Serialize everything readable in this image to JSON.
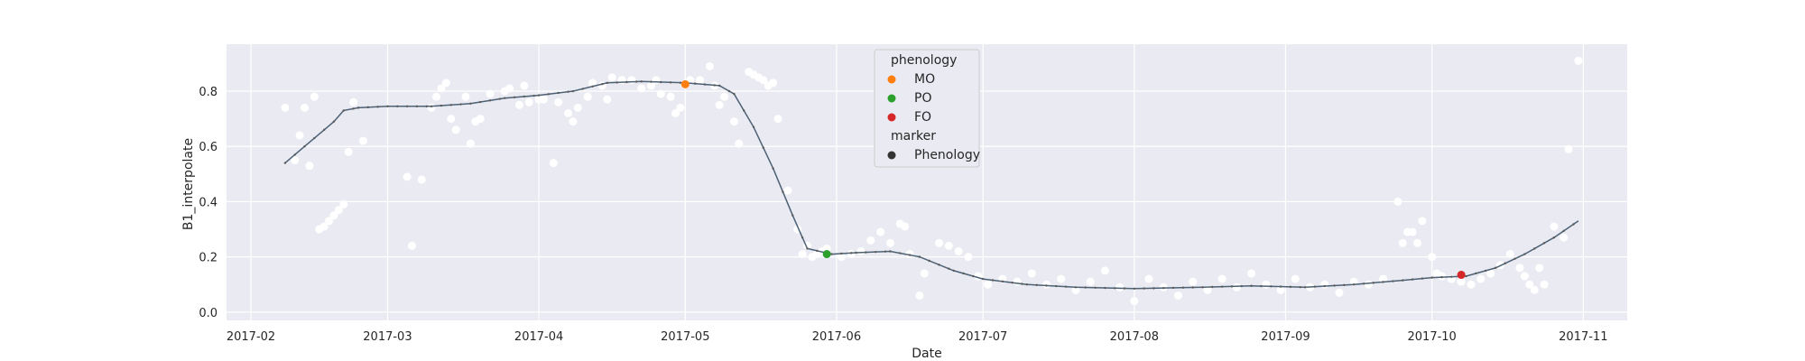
{
  "chart_data": {
    "type": "scatter",
    "xlabel": "Date",
    "ylabel": "B1_interpolate",
    "xlim": [
      "2017-01-27",
      "2017-11-10"
    ],
    "ylim": [
      -0.03,
      0.97
    ],
    "x_ticks": [
      "2017-02-01",
      "2017-03-01",
      "2017-04-01",
      "2017-05-01",
      "2017-06-01",
      "2017-07-01",
      "2017-08-01",
      "2017-09-01",
      "2017-10-01",
      "2017-11-01"
    ],
    "x_tick_labels": [
      "2017-02",
      "2017-03",
      "2017-04",
      "2017-05",
      "2017-06",
      "2017-07",
      "2017-08",
      "2017-09",
      "2017-10",
      "2017-11"
    ],
    "y_ticks": [
      0.0,
      0.2,
      0.4,
      0.6,
      0.8
    ],
    "y_tick_labels": [
      "0.0",
      "0.2",
      "0.4",
      "0.6",
      "0.8"
    ],
    "grid": true,
    "legend_position": "top-center",
    "legend": {
      "hue_title": "phenology",
      "hue_entries": [
        {
          "label": "MO",
          "color": "#ff7f0e"
        },
        {
          "label": "PO",
          "color": "#2ca02c"
        },
        {
          "label": "FO",
          "color": "#d62728"
        }
      ],
      "marker_title": "marker",
      "marker_entries": [
        {
          "label": "Phenology",
          "color": "#333333"
        }
      ]
    },
    "colors": {
      "background": "#eaeaf2",
      "grid": "#ffffff",
      "raw_points": "#ffffff",
      "curve": "#4c6174",
      "curve_markers": "#595959"
    },
    "series": [
      {
        "kind": "raw_observations",
        "points": [
          [
            "2017-02-08",
            0.74
          ],
          [
            "2017-02-10",
            0.55
          ],
          [
            "2017-02-11",
            0.64
          ],
          [
            "2017-02-12",
            0.74
          ],
          [
            "2017-02-13",
            0.53
          ],
          [
            "2017-02-14",
            0.78
          ],
          [
            "2017-02-15",
            0.3
          ],
          [
            "2017-02-16",
            0.31
          ],
          [
            "2017-02-17",
            0.33
          ],
          [
            "2017-02-18",
            0.35
          ],
          [
            "2017-02-19",
            0.37
          ],
          [
            "2017-02-20",
            0.39
          ],
          [
            "2017-02-21",
            0.58
          ],
          [
            "2017-02-22",
            0.76
          ],
          [
            "2017-02-24",
            0.62
          ],
          [
            "2017-03-05",
            0.49
          ],
          [
            "2017-03-06",
            0.24
          ],
          [
            "2017-03-08",
            0.48
          ],
          [
            "2017-03-10",
            0.74
          ],
          [
            "2017-03-11",
            0.78
          ],
          [
            "2017-03-12",
            0.81
          ],
          [
            "2017-03-13",
            0.83
          ],
          [
            "2017-03-14",
            0.7
          ],
          [
            "2017-03-15",
            0.66
          ],
          [
            "2017-03-17",
            0.78
          ],
          [
            "2017-03-18",
            0.61
          ],
          [
            "2017-03-19",
            0.69
          ],
          [
            "2017-03-20",
            0.7
          ],
          [
            "2017-03-22",
            0.79
          ],
          [
            "2017-03-25",
            0.8
          ],
          [
            "2017-03-26",
            0.81
          ],
          [
            "2017-03-28",
            0.75
          ],
          [
            "2017-03-29",
            0.82
          ],
          [
            "2017-03-30",
            0.76
          ],
          [
            "2017-04-01",
            0.77
          ],
          [
            "2017-04-02",
            0.77
          ],
          [
            "2017-04-04",
            0.54
          ],
          [
            "2017-04-05",
            0.76
          ],
          [
            "2017-04-07",
            0.72
          ],
          [
            "2017-04-08",
            0.69
          ],
          [
            "2017-04-09",
            0.74
          ],
          [
            "2017-04-11",
            0.78
          ],
          [
            "2017-04-12",
            0.83
          ],
          [
            "2017-04-14",
            0.82
          ],
          [
            "2017-04-15",
            0.77
          ],
          [
            "2017-04-16",
            0.85
          ],
          [
            "2017-04-18",
            0.84
          ],
          [
            "2017-04-20",
            0.84
          ],
          [
            "2017-04-22",
            0.81
          ],
          [
            "2017-04-24",
            0.82
          ],
          [
            "2017-04-25",
            0.84
          ],
          [
            "2017-04-26",
            0.79
          ],
          [
            "2017-04-28",
            0.78
          ],
          [
            "2017-04-29",
            0.72
          ],
          [
            "2017-04-30",
            0.74
          ],
          [
            "2017-05-02",
            0.84
          ],
          [
            "2017-05-04",
            0.84
          ],
          [
            "2017-05-06",
            0.89
          ],
          [
            "2017-05-07",
            0.82
          ],
          [
            "2017-05-08",
            0.75
          ],
          [
            "2017-05-09",
            0.78
          ],
          [
            "2017-05-11",
            0.69
          ],
          [
            "2017-05-12",
            0.61
          ],
          [
            "2017-05-14",
            0.87
          ],
          [
            "2017-05-15",
            0.86
          ],
          [
            "2017-05-16",
            0.85
          ],
          [
            "2017-05-17",
            0.84
          ],
          [
            "2017-05-18",
            0.82
          ],
          [
            "2017-05-19",
            0.83
          ],
          [
            "2017-05-20",
            0.7
          ],
          [
            "2017-05-22",
            0.44
          ],
          [
            "2017-05-24",
            0.3
          ],
          [
            "2017-05-25",
            0.21
          ],
          [
            "2017-05-26",
            0.24
          ],
          [
            "2017-05-27",
            0.2
          ],
          [
            "2017-05-28",
            0.21
          ],
          [
            "2017-05-29",
            0.22
          ],
          [
            "2017-05-30",
            0.23
          ],
          [
            "2017-06-02",
            0.2
          ],
          [
            "2017-06-04",
            0.21
          ],
          [
            "2017-06-06",
            0.22
          ],
          [
            "2017-06-08",
            0.26
          ],
          [
            "2017-06-10",
            0.29
          ],
          [
            "2017-06-12",
            0.25
          ],
          [
            "2017-06-14",
            0.32
          ],
          [
            "2017-06-15",
            0.31
          ],
          [
            "2017-06-16",
            0.21
          ],
          [
            "2017-06-18",
            0.06
          ],
          [
            "2017-06-19",
            0.14
          ],
          [
            "2017-06-22",
            0.25
          ],
          [
            "2017-06-24",
            0.24
          ],
          [
            "2017-06-26",
            0.22
          ],
          [
            "2017-06-28",
            0.2
          ],
          [
            "2017-06-30",
            0.13
          ],
          [
            "2017-07-02",
            0.1
          ],
          [
            "2017-07-05",
            0.12
          ],
          [
            "2017-07-08",
            0.11
          ],
          [
            "2017-07-11",
            0.14
          ],
          [
            "2017-07-14",
            0.1
          ],
          [
            "2017-07-17",
            0.12
          ],
          [
            "2017-07-20",
            0.08
          ],
          [
            "2017-07-23",
            0.11
          ],
          [
            "2017-07-26",
            0.15
          ],
          [
            "2017-07-29",
            0.09
          ],
          [
            "2017-08-01",
            0.04
          ],
          [
            "2017-08-04",
            0.12
          ],
          [
            "2017-08-07",
            0.09
          ],
          [
            "2017-08-10",
            0.06
          ],
          [
            "2017-08-13",
            0.11
          ],
          [
            "2017-08-16",
            0.08
          ],
          [
            "2017-08-19",
            0.12
          ],
          [
            "2017-08-22",
            0.09
          ],
          [
            "2017-08-25",
            0.14
          ],
          [
            "2017-08-28",
            0.1
          ],
          [
            "2017-08-31",
            0.08
          ],
          [
            "2017-09-03",
            0.12
          ],
          [
            "2017-09-06",
            0.09
          ],
          [
            "2017-09-09",
            0.1
          ],
          [
            "2017-09-12",
            0.07
          ],
          [
            "2017-09-15",
            0.11
          ],
          [
            "2017-09-18",
            0.1
          ],
          [
            "2017-09-21",
            0.12
          ],
          [
            "2017-09-24",
            0.4
          ],
          [
            "2017-09-25",
            0.25
          ],
          [
            "2017-09-26",
            0.29
          ],
          [
            "2017-09-27",
            0.29
          ],
          [
            "2017-09-28",
            0.25
          ],
          [
            "2017-09-29",
            0.33
          ],
          [
            "2017-10-01",
            0.2
          ],
          [
            "2017-10-02",
            0.14
          ],
          [
            "2017-10-03",
            0.13
          ],
          [
            "2017-10-05",
            0.12
          ],
          [
            "2017-10-07",
            0.11
          ],
          [
            "2017-10-09",
            0.1
          ],
          [
            "2017-10-11",
            0.12
          ],
          [
            "2017-10-13",
            0.14
          ],
          [
            "2017-10-15",
            0.17
          ],
          [
            "2017-10-17",
            0.21
          ],
          [
            "2017-10-19",
            0.16
          ],
          [
            "2017-10-20",
            0.13
          ],
          [
            "2017-10-21",
            0.1
          ],
          [
            "2017-10-22",
            0.08
          ],
          [
            "2017-10-23",
            0.16
          ],
          [
            "2017-10-24",
            0.1
          ],
          [
            "2017-10-26",
            0.31
          ],
          [
            "2017-10-28",
            0.27
          ],
          [
            "2017-10-29",
            0.59
          ],
          [
            "2017-10-31",
            0.91
          ]
        ]
      },
      {
        "kind": "interpolated_curve",
        "points": [
          [
            "2017-02-08",
            0.54
          ],
          [
            "2017-02-12",
            0.6
          ],
          [
            "2017-02-16",
            0.66
          ],
          [
            "2017-02-18",
            0.69
          ],
          [
            "2017-02-20",
            0.73
          ],
          [
            "2017-02-23",
            0.74
          ],
          [
            "2017-03-01",
            0.745
          ],
          [
            "2017-03-10",
            0.745
          ],
          [
            "2017-03-18",
            0.755
          ],
          [
            "2017-03-25",
            0.775
          ],
          [
            "2017-04-01",
            0.785
          ],
          [
            "2017-04-08",
            0.8
          ],
          [
            "2017-04-15",
            0.83
          ],
          [
            "2017-04-22",
            0.835
          ],
          [
            "2017-05-01",
            0.83
          ],
          [
            "2017-05-08",
            0.82
          ],
          [
            "2017-05-11",
            0.79
          ],
          [
            "2017-05-15",
            0.67
          ],
          [
            "2017-05-19",
            0.52
          ],
          [
            "2017-05-23",
            0.35
          ],
          [
            "2017-05-26",
            0.23
          ],
          [
            "2017-05-31",
            0.21
          ],
          [
            "2017-06-05",
            0.215
          ],
          [
            "2017-06-12",
            0.22
          ],
          [
            "2017-06-18",
            0.2
          ],
          [
            "2017-06-25",
            0.15
          ],
          [
            "2017-07-01",
            0.12
          ],
          [
            "2017-07-10",
            0.1
          ],
          [
            "2017-07-20",
            0.09
          ],
          [
            "2017-08-01",
            0.085
          ],
          [
            "2017-08-15",
            0.09
          ],
          [
            "2017-08-25",
            0.095
          ],
          [
            "2017-09-05",
            0.09
          ],
          [
            "2017-09-15",
            0.1
          ],
          [
            "2017-09-25",
            0.115
          ],
          [
            "2017-10-01",
            0.125
          ],
          [
            "2017-10-08",
            0.13
          ],
          [
            "2017-10-14",
            0.16
          ],
          [
            "2017-10-20",
            0.21
          ],
          [
            "2017-10-26",
            0.27
          ],
          [
            "2017-10-31",
            0.33
          ]
        ]
      },
      {
        "kind": "phenology_markers",
        "points": [
          {
            "label": "MO",
            "x": "2017-05-01",
            "y": 0.825,
            "color": "#ff7f0e"
          },
          {
            "label": "PO",
            "x": "2017-05-30",
            "y": 0.21,
            "color": "#2ca02c"
          },
          {
            "label": "FO",
            "x": "2017-10-07",
            "y": 0.135,
            "color": "#d62728"
          }
        ]
      }
    ]
  }
}
